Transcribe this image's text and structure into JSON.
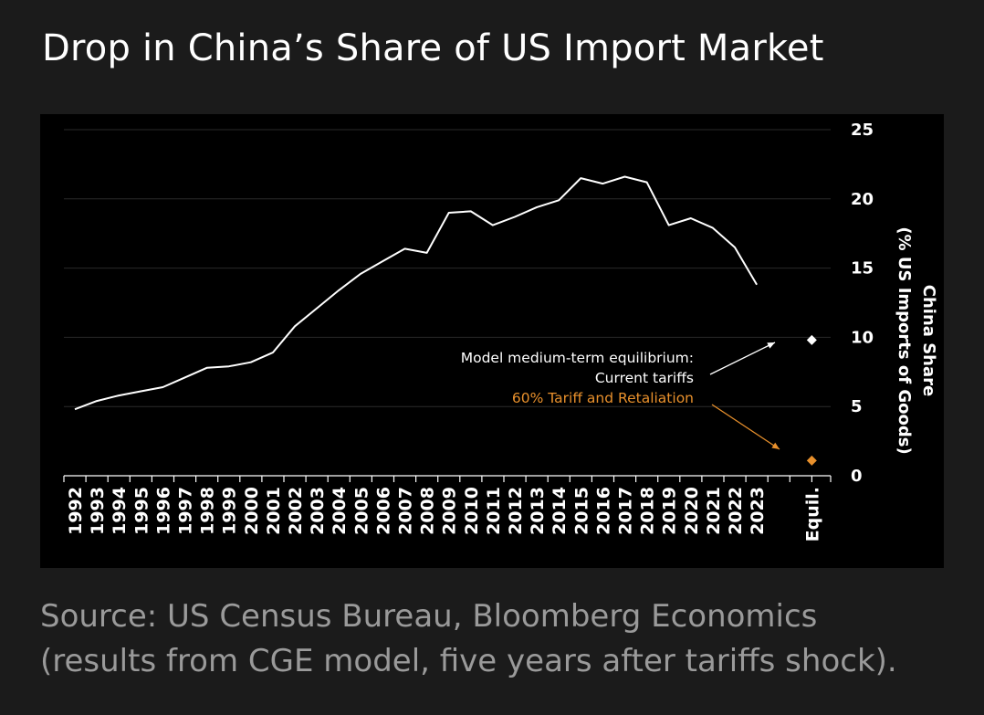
{
  "title": "Drop in China’s Share of US Import Market",
  "source": {
    "line1": "Source: US Census Bureau, Bloomberg Economics",
    "line2": "(results from CGE model, five years after tariffs shock)."
  },
  "colors": {
    "background": "#1b1b1b",
    "panel": "#000000",
    "series": "#ffffff",
    "retaliation": "#e8902c",
    "grid": "#2a2a2a"
  },
  "chart_data": {
    "type": "line",
    "ylabel_line1": "China Share",
    "ylabel_line2": "(% US Imports of Goods)",
    "ylim": [
      0,
      25
    ],
    "yticks": [
      0,
      5,
      10,
      15,
      20,
      25
    ],
    "y_axis_position": "right",
    "grid": true,
    "x": [
      "1992",
      "1993",
      "1994",
      "1995",
      "1996",
      "1997",
      "1998",
      "1999",
      "2000",
      "2001",
      "2002",
      "2003",
      "2004",
      "2005",
      "2006",
      "2007",
      "2008",
      "2009",
      "2010",
      "2011",
      "2012",
      "2013",
      "2014",
      "2015",
      "2016",
      "2017",
      "2018",
      "2019",
      "2020",
      "2021",
      "2022",
      "2023"
    ],
    "series": [
      {
        "values": [
          4.8,
          5.4,
          5.8,
          6.1,
          6.4,
          7.1,
          7.8,
          7.9,
          8.2,
          8.9,
          10.8,
          12.1,
          13.4,
          14.6,
          15.5,
          16.4,
          16.1,
          19.0,
          19.1,
          18.1,
          18.7,
          19.4,
          19.9,
          21.5,
          21.1,
          21.6,
          21.2,
          18.1,
          18.6,
          17.9,
          16.5,
          13.8
        ]
      }
    ],
    "equilibrium": {
      "label": "Equil.",
      "annotation_line1": "Model medium-term equilibrium:",
      "points": [
        {
          "name": "Current tariffs",
          "value": 9.8,
          "color": "#ffffff"
        },
        {
          "name": "60% Tariff and Retaliation",
          "value": 1.1,
          "color": "#e8902c"
        }
      ]
    }
  }
}
